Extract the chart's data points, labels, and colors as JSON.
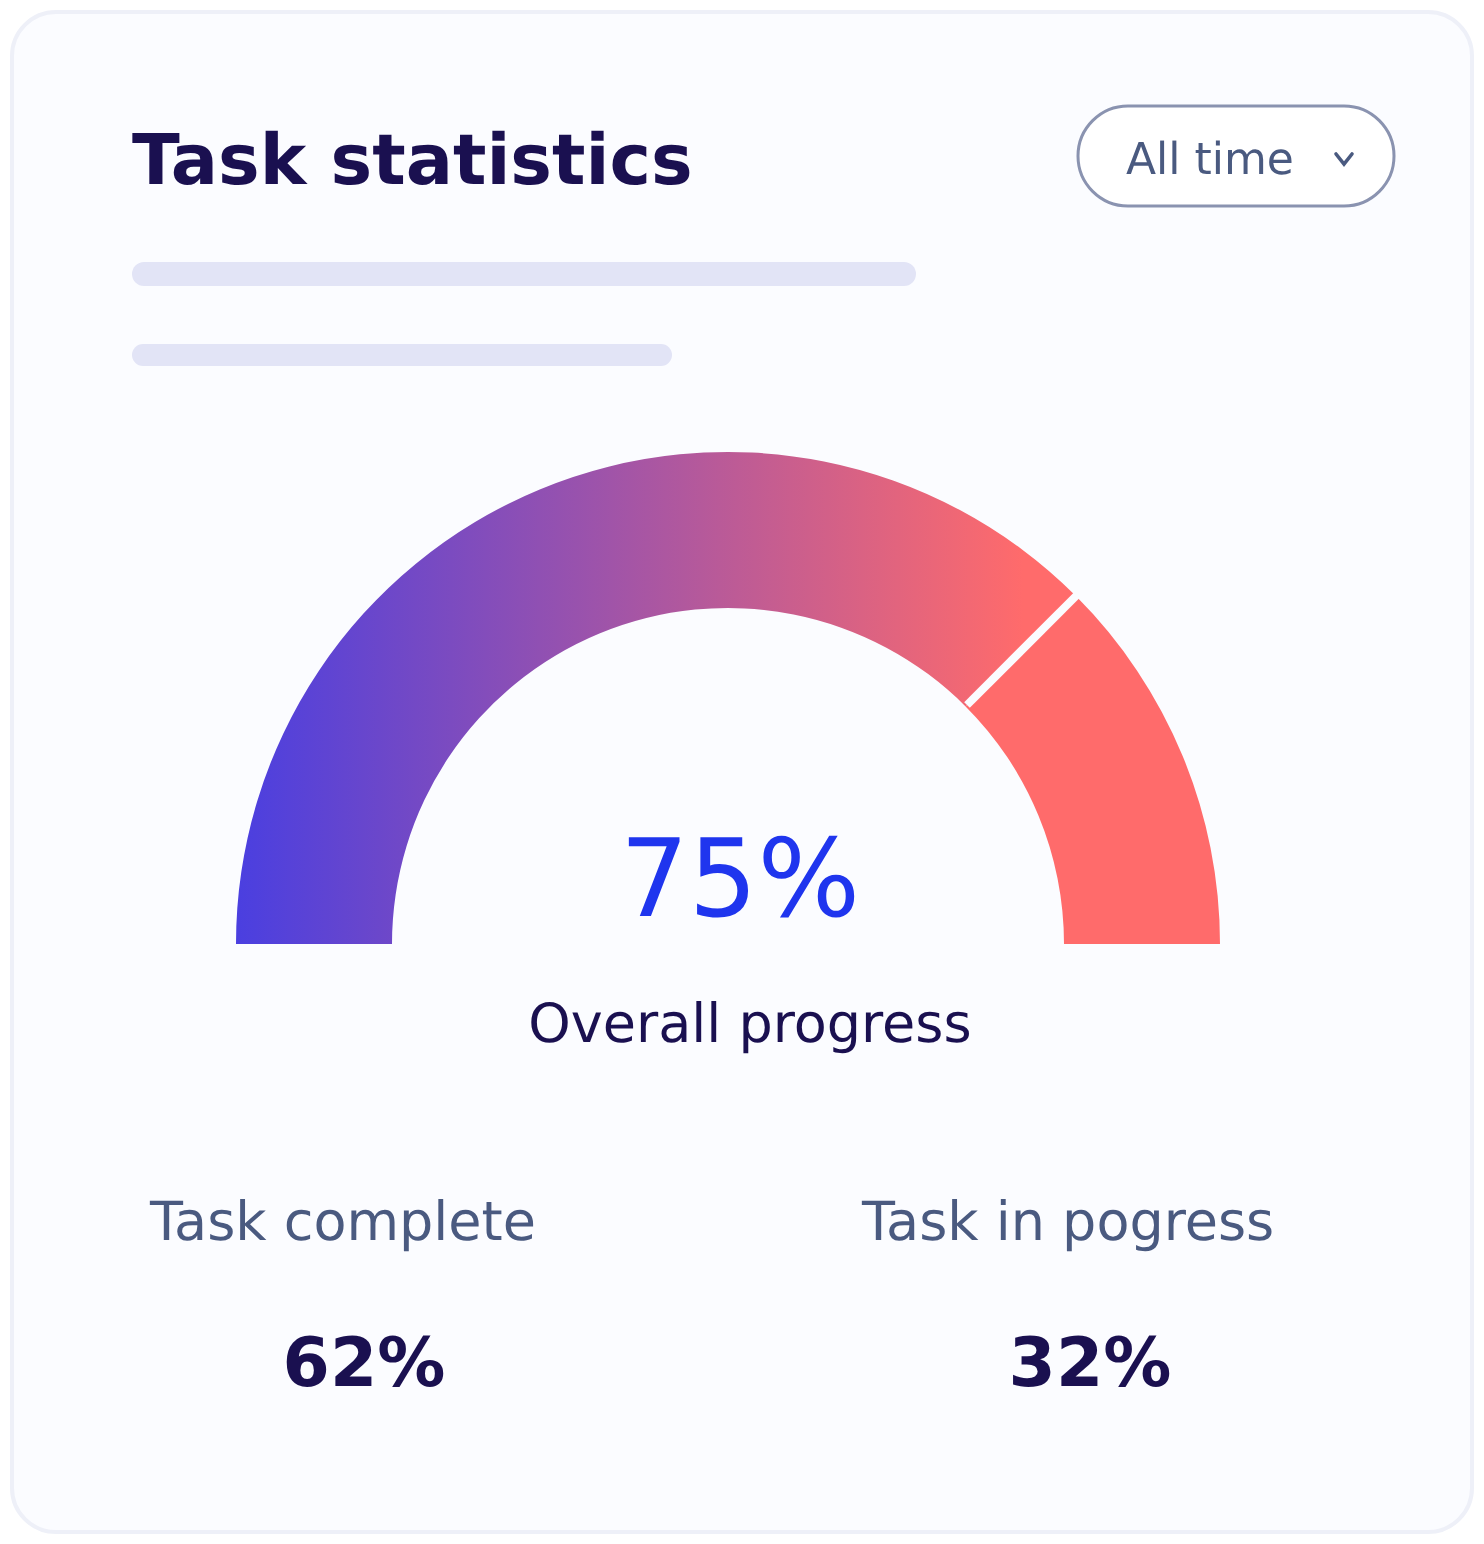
{
  "chart_data": {
    "type": "donut",
    "title": "Task  statistics",
    "categories": [
      null,
      null
    ],
    "values": [
      75,
      25
    ],
    "colors": [
      "#4a3fe0",
      "#ff6b6b"
    ],
    "value_labels": [
      "75%",
      null
    ],
    "annotations": [
      "All time",
      "Overall progress",
      "Task complete",
      "62%",
      "Task in pogress",
      "32%"
    ]
  }
}
